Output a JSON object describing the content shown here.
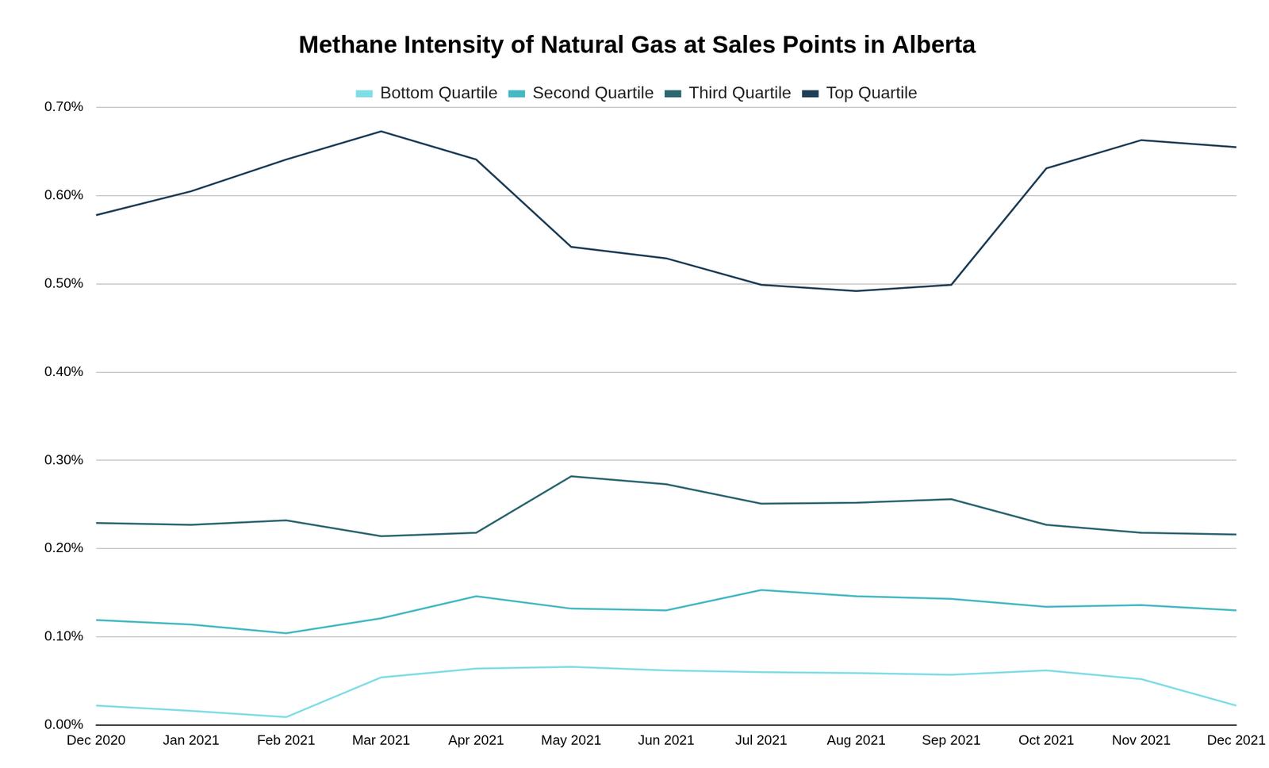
{
  "chart_data": {
    "type": "line",
    "title": "Methane Intensity of Natural Gas at Sales Points in Alberta",
    "categories": [
      "Dec 2020",
      "Jan 2021",
      "Feb 2021",
      "Mar 2021",
      "Apr 2021",
      "May 2021",
      "Jun 2021",
      "Jul 2021",
      "Aug 2021",
      "Sep 2021",
      "Oct 2021",
      "Nov 2021",
      "Dec 2021"
    ],
    "series": [
      {
        "name": "Bottom Quartile",
        "color": "#7fdde6",
        "values": [
          0.022,
          0.016,
          0.009,
          0.054,
          0.064,
          0.066,
          0.062,
          0.06,
          0.059,
          0.057,
          0.062,
          0.052,
          0.022
        ]
      },
      {
        "name": "Second Quartile",
        "color": "#45b8c4",
        "values": [
          0.119,
          0.114,
          0.104,
          0.121,
          0.146,
          0.132,
          0.13,
          0.153,
          0.146,
          0.143,
          0.134,
          0.136,
          0.13
        ]
      },
      {
        "name": "Third Quartile",
        "color": "#2b6670",
        "values": [
          0.229,
          0.227,
          0.232,
          0.214,
          0.218,
          0.282,
          0.273,
          0.251,
          0.252,
          0.256,
          0.227,
          0.218,
          0.216
        ]
      },
      {
        "name": "Top Quartile",
        "color": "#1d3d57",
        "values": [
          0.578,
          0.605,
          0.641,
          0.673,
          0.641,
          0.542,
          0.529,
          0.499,
          0.492,
          0.499,
          0.631,
          0.663,
          0.655
        ]
      }
    ],
    "ylim": [
      0,
      0.7
    ],
    "yticks": [
      {
        "value": 0,
        "label": "0.00%"
      },
      {
        "value": 0.1,
        "label": "0.10%"
      },
      {
        "value": 0.2,
        "label": "0.20%"
      },
      {
        "value": 0.3,
        "label": "0.30%"
      },
      {
        "value": 0.4,
        "label": "0.40%"
      },
      {
        "value": 0.5,
        "label": "0.50%"
      },
      {
        "value": 0.6,
        "label": "0.60%"
      },
      {
        "value": 0.7,
        "label": "0.70%"
      }
    ],
    "grid": true,
    "legend": "top"
  }
}
